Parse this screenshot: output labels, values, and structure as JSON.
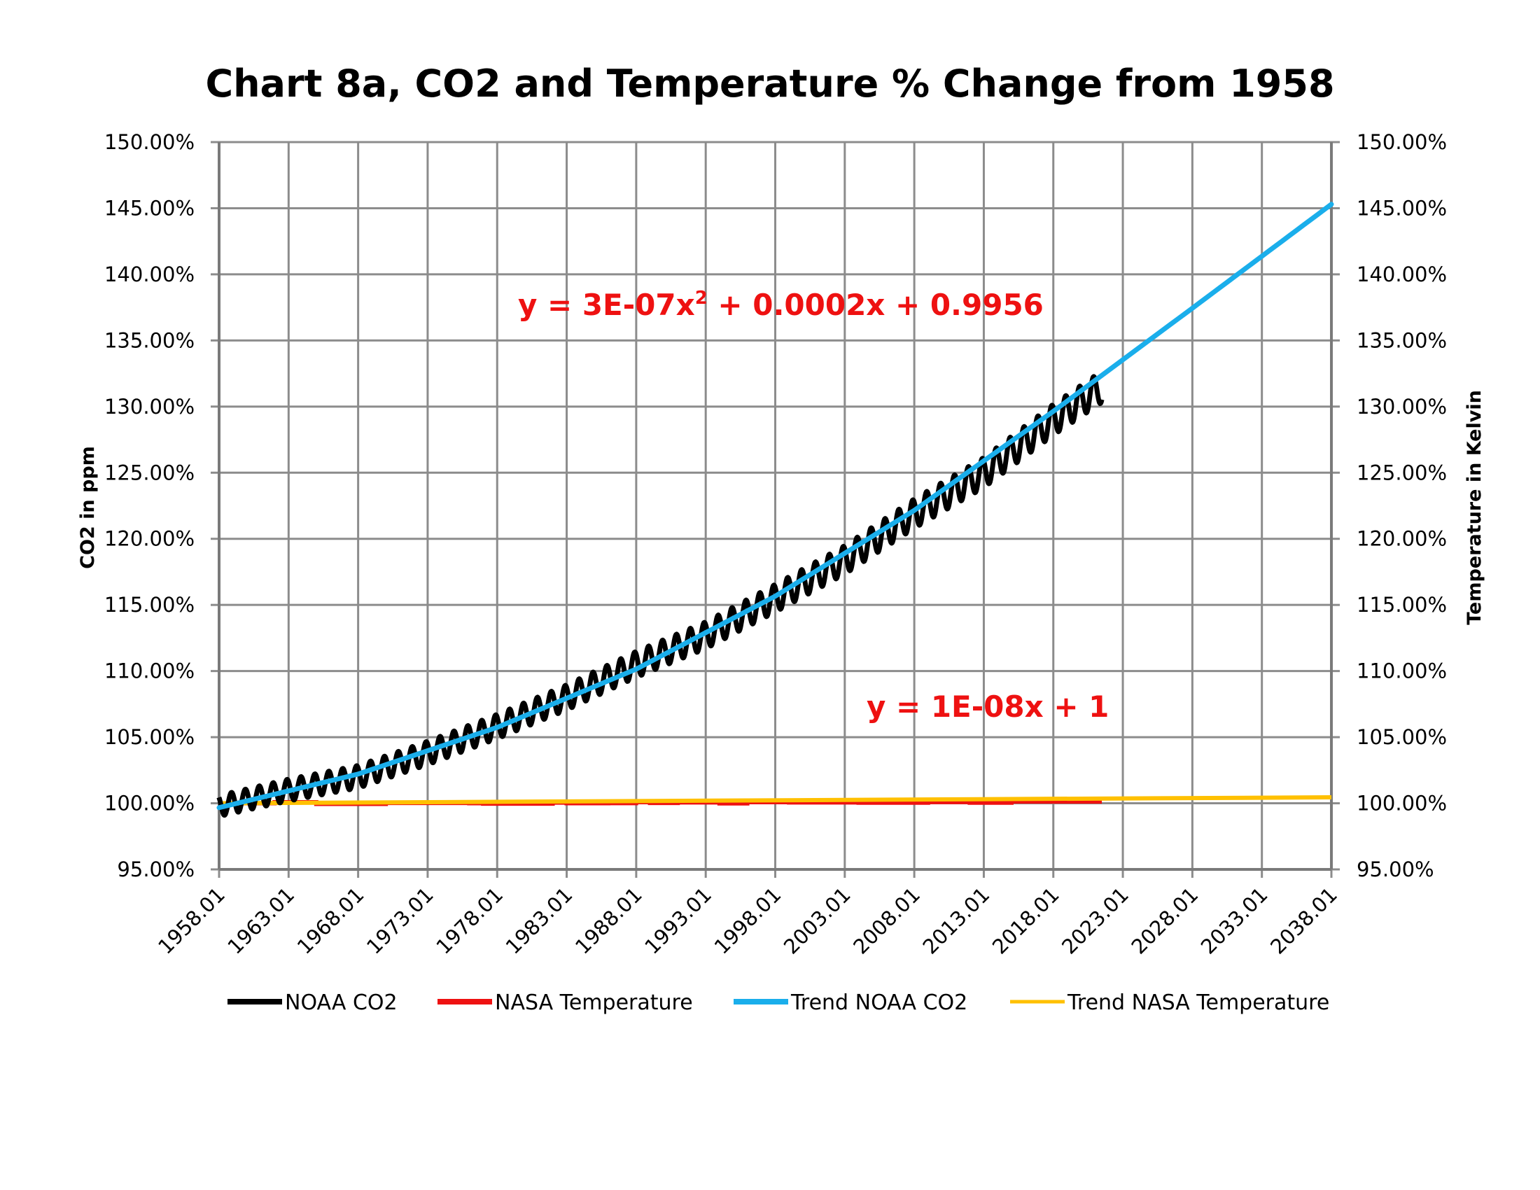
{
  "chart_data": {
    "type": "line",
    "title": "Chart 8a, CO2 and Temperature % Change from 1958",
    "ylabel_left": "CO2 in ppm",
    "ylabel_right": "Temperature in Kelvin",
    "xlabel": "",
    "x_ticks": [
      "1958.01",
      "1963.01",
      "1968.01",
      "1973.01",
      "1978.01",
      "1983.01",
      "1988.01",
      "1993.01",
      "1998.01",
      "2003.01",
      "2008.01",
      "2013.01",
      "2018.01",
      "2023.01",
      "2028.01",
      "2033.01",
      "2038.01"
    ],
    "xlim": [
      1958.01,
      2038.01
    ],
    "ylim": [
      0.95,
      1.5
    ],
    "y_ticks": [
      "95.00%",
      "100.00%",
      "105.00%",
      "110.00%",
      "115.00%",
      "120.00%",
      "125.00%",
      "130.00%",
      "135.00%",
      "140.00%",
      "145.00%",
      "150.00%"
    ],
    "grid": true,
    "legend_position": "bottom",
    "series": [
      {
        "name": "NOAA CO2",
        "color": "#000000",
        "style": "seasonal",
        "x": [
          1958.0,
          1963.0,
          1968.0,
          1973.0,
          1978.0,
          1983.0,
          1988.0,
          1993.0,
          1998.0,
          2003.0,
          2008.0,
          2013.0,
          2018.0,
          2021.5
        ],
        "y": [
          0.998,
          1.01,
          1.02,
          1.038,
          1.058,
          1.08,
          1.105,
          1.127,
          1.155,
          1.184,
          1.219,
          1.25,
          1.29,
          1.315
        ],
        "amplitude": 0.01
      },
      {
        "name": "NASA Temperature",
        "color": "#ee1111",
        "style": "step",
        "x": [
          1958,
          1962,
          1965,
          1970,
          1976,
          1977,
          1982,
          1983,
          1986,
          1988,
          1989,
          1991,
          1994,
          1996,
          1999,
          2004,
          2009,
          2012,
          2015,
          2021.5
        ],
        "y": [
          1.0,
          1.0008,
          0.9995,
          1.0002,
          1.0,
          0.9997,
          1.0005,
          1.0,
          1.0001,
          1.0008,
          1.0002,
          1.0006,
          0.9999,
          1.0008,
          1.0006,
          1.0004,
          1.0009,
          1.0004,
          1.0013,
          1.0013
        ]
      },
      {
        "name": "Trend NOAA CO2",
        "color": "#1aaeeb",
        "equation": "y = 3E-07x² + 0.0002x + 0.9956",
        "x": [
          1958.01,
          1968.01,
          1978.01,
          1988.01,
          1998.01,
          2008.01,
          2018.01,
          2028.01,
          2038.01
        ],
        "y": [
          0.9967,
          1.0221,
          1.0574,
          1.1015,
          1.1566,
          1.2215,
          1.2964,
          1.3744,
          1.453
        ]
      },
      {
        "name": "Trend NASA Temperature",
        "color": "#ffc000",
        "equation": "y = 1E-08x + 1",
        "x": [
          1958.01,
          2038.01
        ],
        "y": [
          1.0,
          1.0045
        ]
      }
    ],
    "annotations": [
      {
        "text": "y = 3E-07x",
        "sup": "2",
        "rest": " + 0.0002x + 0.9956",
        "color": "#ee1111"
      },
      {
        "text": "y = 1E-08x + 1",
        "color": "#ee1111"
      }
    ]
  }
}
